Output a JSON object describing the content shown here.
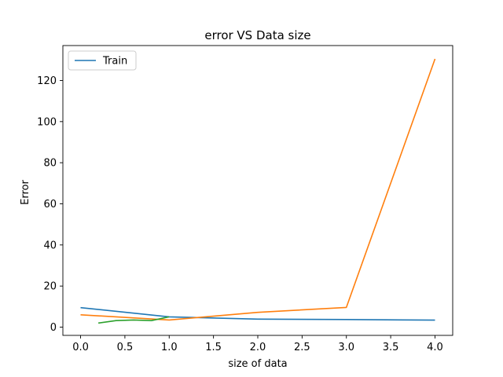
{
  "chart_data": {
    "type": "line",
    "title": "error VS Data size",
    "xlabel": "size of data",
    "ylabel": "Error",
    "xlim": [
      -0.2,
      4.2
    ],
    "ylim": [
      -4,
      137
    ],
    "xticks": [
      "0.0",
      "0.5",
      "1.0",
      "1.5",
      "2.0",
      "2.5",
      "3.0",
      "3.5",
      "4.0"
    ],
    "yticks": [
      "0",
      "20",
      "40",
      "60",
      "80",
      "100",
      "120"
    ],
    "grid": false,
    "legend_position": "top-left",
    "series": [
      {
        "name": "Train",
        "color": "#1f77b4",
        "x": [
          0,
          1,
          2,
          3,
          4
        ],
        "y": [
          9.5,
          5.0,
          3.9,
          3.7,
          3.4
        ]
      },
      {
        "color": "#ff7f0e",
        "x": [
          0,
          1,
          2,
          3,
          4
        ],
        "y": [
          6.0,
          3.5,
          7.2,
          9.6,
          130.5
        ]
      },
      {
        "color": "#2ca02c",
        "x": [
          0.2,
          0.4,
          0.6,
          0.8,
          1.0
        ],
        "y": [
          2.0,
          3.2,
          3.5,
          3.2,
          5.0
        ]
      }
    ]
  }
}
